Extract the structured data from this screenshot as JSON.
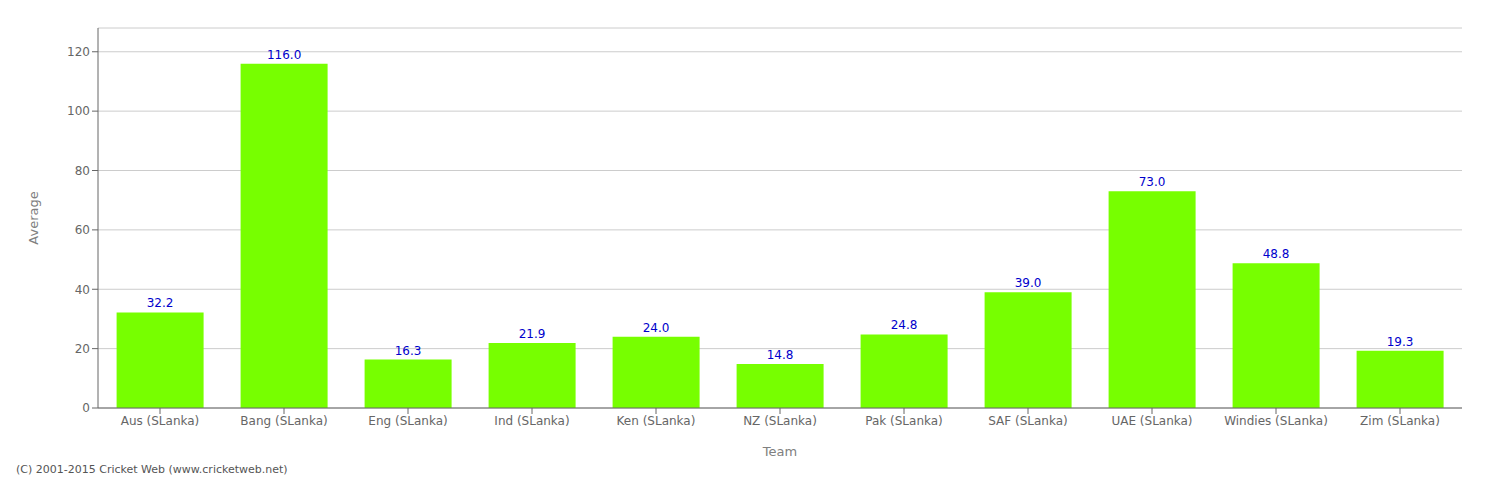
{
  "chart_data": {
    "type": "bar",
    "xlabel": "Team",
    "ylabel": "Average",
    "categories": [
      "Aus (SLanka)",
      "Bang (SLanka)",
      "Eng (SLanka)",
      "Ind (SLanka)",
      "Ken (SLanka)",
      "NZ (SLanka)",
      "Pak (SLanka)",
      "SAF (SLanka)",
      "UAE (SLanka)",
      "Windies (SLanka)",
      "Zim (SLanka)"
    ],
    "values": [
      32.2,
      116.0,
      16.3,
      21.9,
      24.0,
      14.8,
      24.8,
      39.0,
      73.0,
      48.8,
      19.3
    ],
    "value_labels": [
      "32.2",
      "116.0",
      "16.3",
      "21.9",
      "24.0",
      "14.8",
      "24.8",
      "39.0",
      "73.0",
      "48.8",
      "19.3"
    ],
    "color": "#77ff00",
    "ylim": [
      0,
      128
    ],
    "yticks": [
      0,
      20,
      40,
      60,
      80,
      100,
      120
    ],
    "grid": true,
    "data_labels": true,
    "annotations": [
      "(C) 2001-2015 Cricket Web (www.cricketweb.net)"
    ]
  }
}
